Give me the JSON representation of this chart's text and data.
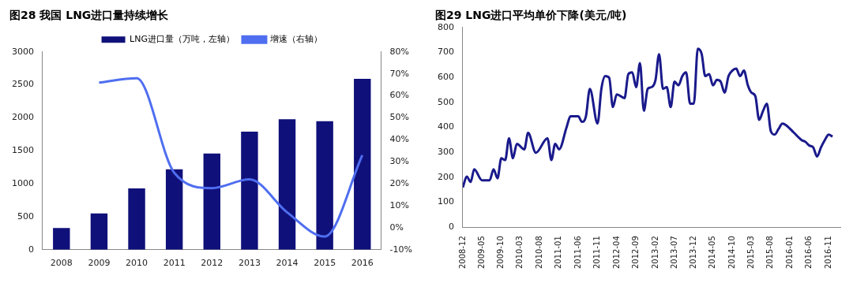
{
  "chart_data": [
    {
      "type": "bar",
      "title": "图28 我国 LNG进口量持续增长",
      "categories": [
        "2008",
        "2009",
        "2010",
        "2011",
        "2012",
        "2013",
        "2014",
        "2015",
        "2016"
      ],
      "series": [
        {
          "name": "LNG进口量（万吨，左轴）",
          "color": "#10107a",
          "values": [
            330,
            550,
            930,
            1220,
            1460,
            1790,
            1980,
            1950,
            2590
          ]
        },
        {
          "name": "增速（右轴）",
          "type": "line",
          "axis": "y2",
          "color": "#4f6ef0",
          "values": [
            null,
            66,
            68,
            25,
            18,
            22,
            7,
            -4,
            33
          ]
        }
      ],
      "ylim": [
        0,
        3000
      ],
      "yticks": [
        0,
        500,
        1000,
        1500,
        2000,
        2500,
        3000
      ],
      "y2lim": [
        -10,
        80
      ],
      "y2ticks": [
        {
          "value": -10,
          "label": "-10%"
        },
        {
          "value": 0,
          "label": "0%"
        },
        {
          "value": 10,
          "label": "10%"
        },
        {
          "value": 20,
          "label": "20%"
        },
        {
          "value": 30,
          "label": "30%"
        },
        {
          "value": 40,
          "label": "40%"
        },
        {
          "value": 50,
          "label": "50%"
        },
        {
          "value": 60,
          "label": "60%"
        },
        {
          "value": 70,
          "label": "70%"
        },
        {
          "value": 80,
          "label": "80%"
        }
      ],
      "legend": "top"
    },
    {
      "type": "line",
      "title": "图29 LNG进口平均单价下降(美元/吨)",
      "x": [
        "2008-12",
        "2009-01",
        "2009-02",
        "2009-03",
        "2009-05",
        "2009-07",
        "2009-08",
        "2009-09",
        "2009-10",
        "2009-11",
        "2009-12",
        "2010-01",
        "2010-02",
        "2010-04",
        "2010-05",
        "2010-07",
        "2010-10",
        "2010-11",
        "2010-12",
        "2011-01",
        "2011-03",
        "2011-04",
        "2011-06",
        "2011-07",
        "2011-08",
        "2011-09",
        "2011-11",
        "2011-12",
        "2012-01",
        "2012-02",
        "2012-03",
        "2012-04",
        "2012-06",
        "2012-07",
        "2012-08",
        "2012-09",
        "2012-10",
        "2012-11",
        "2012-12",
        "2013-01",
        "2013-02",
        "2013-03",
        "2013-04",
        "2013-05",
        "2013-06",
        "2013-07",
        "2013-08",
        "2013-09",
        "2013-10",
        "2013-11",
        "2013-12",
        "2014-01",
        "2014-02",
        "2014-03",
        "2014-04",
        "2014-05",
        "2014-06",
        "2014-07",
        "2014-08",
        "2014-09",
        "2014-10",
        "2014-11",
        "2014-12",
        "2015-01",
        "2015-02",
        "2015-03",
        "2015-04",
        "2015-05",
        "2015-06",
        "2015-07",
        "2015-08",
        "2015-09",
        "2015-10",
        "2015-11",
        "2015-12",
        "2016-02",
        "2016-04",
        "2016-05",
        "2016-06",
        "2016-07",
        "2016-08",
        "2016-09",
        "2016-10",
        "2016-11",
        "2016-12"
      ],
      "series": [
        {
          "color": "#1a1a8c",
          "values": [
            159,
            203,
            181,
            232,
            188,
            188,
            232,
            196,
            276,
            269,
            356,
            276,
            334,
            312,
            378,
            298,
            356,
            269,
            334,
            312,
            400,
            444,
            444,
            422,
            444,
            554,
            415,
            554,
            605,
            598,
            481,
            532,
            517,
            613,
            620,
            561,
            657,
            466,
            554,
            561,
            590,
            693,
            554,
            561,
            481,
            583,
            568,
            605,
            620,
            495,
            495,
            715,
            693,
            605,
            613,
            568,
            590,
            583,
            539,
            605,
            627,
            635,
            605,
            627,
            568,
            539,
            525,
            430,
            466,
            495,
            385,
            371,
            393,
            415,
            408,
            378,
            349,
            342,
            327,
            320,
            283,
            320,
            349,
            371,
            363
          ]
        }
      ],
      "xlim": [
        "2008-12",
        "2017-02"
      ],
      "xticks": [
        "2008-12",
        "2009-05",
        "2009-10",
        "2010-03",
        "2010-08",
        "2011-01",
        "2011-06",
        "2011-11",
        "2012-04",
        "2012-09",
        "2013-02",
        "2013-07",
        "2013-12",
        "2014-05",
        "2014-10",
        "2015-03",
        "2015-08",
        "2016-01",
        "2016-06",
        "2016-11"
      ],
      "ylim": [
        0,
        800
      ],
      "yticks": [
        0,
        100,
        200,
        300,
        400,
        500,
        600,
        700,
        800
      ]
    }
  ]
}
